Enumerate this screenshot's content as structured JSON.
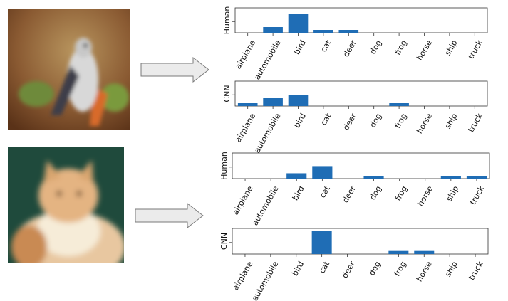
{
  "chart_data": [
    {
      "type": "bar",
      "ylabel": "Human",
      "categories": [
        "airplane",
        "automobile",
        "bird",
        "cat",
        "deer",
        "dog",
        "frog",
        "horse",
        "ship",
        "truck"
      ],
      "values": [
        0.0,
        0.08,
        0.26,
        0.04,
        0.04,
        0.0,
        0.0,
        0.0,
        0.0,
        0.0
      ],
      "ylim": [
        0,
        0.35
      ],
      "grid": false
    },
    {
      "type": "bar",
      "ylabel": "CNN",
      "categories": [
        "airplane",
        "automobile",
        "bird",
        "cat",
        "deer",
        "dog",
        "frog",
        "horse",
        "ship",
        "truck"
      ],
      "values": [
        0.04,
        0.11,
        0.15,
        0.0,
        0.0,
        0.0,
        0.04,
        0.0,
        0.0,
        0.0
      ],
      "ylim": [
        0,
        0.35
      ],
      "grid": false
    },
    {
      "type": "bar",
      "ylabel": "Human",
      "categories": [
        "airplane",
        "automobile",
        "bird",
        "cat",
        "deer",
        "dog",
        "frog",
        "horse",
        "ship",
        "truck"
      ],
      "values": [
        0.0,
        0.0,
        0.09,
        0.21,
        0.0,
        0.04,
        0.0,
        0.0,
        0.04,
        0.04
      ],
      "ylim": [
        0,
        0.43
      ],
      "grid": false
    },
    {
      "type": "bar",
      "ylabel": "CNN",
      "categories": [
        "airplane",
        "automobile",
        "bird",
        "cat",
        "deer",
        "dog",
        "frog",
        "horse",
        "ship",
        "truck"
      ],
      "values": [
        0.0,
        0.0,
        0.0,
        0.91,
        0.0,
        0.0,
        0.12,
        0.12,
        0.0,
        0.0
      ],
      "ylim": [
        0,
        1.0
      ],
      "grid": false
    }
  ],
  "colors": {
    "bar": "#1f6db5",
    "axis": "#333333",
    "arrow_fill": "#ebebeb",
    "arrow_stroke": "#7a7a7a"
  },
  "images": [
    {
      "subject": "bird-photo",
      "background": "#8a5a32"
    },
    {
      "subject": "cat-photo",
      "background": "#1f4a3c"
    }
  ]
}
